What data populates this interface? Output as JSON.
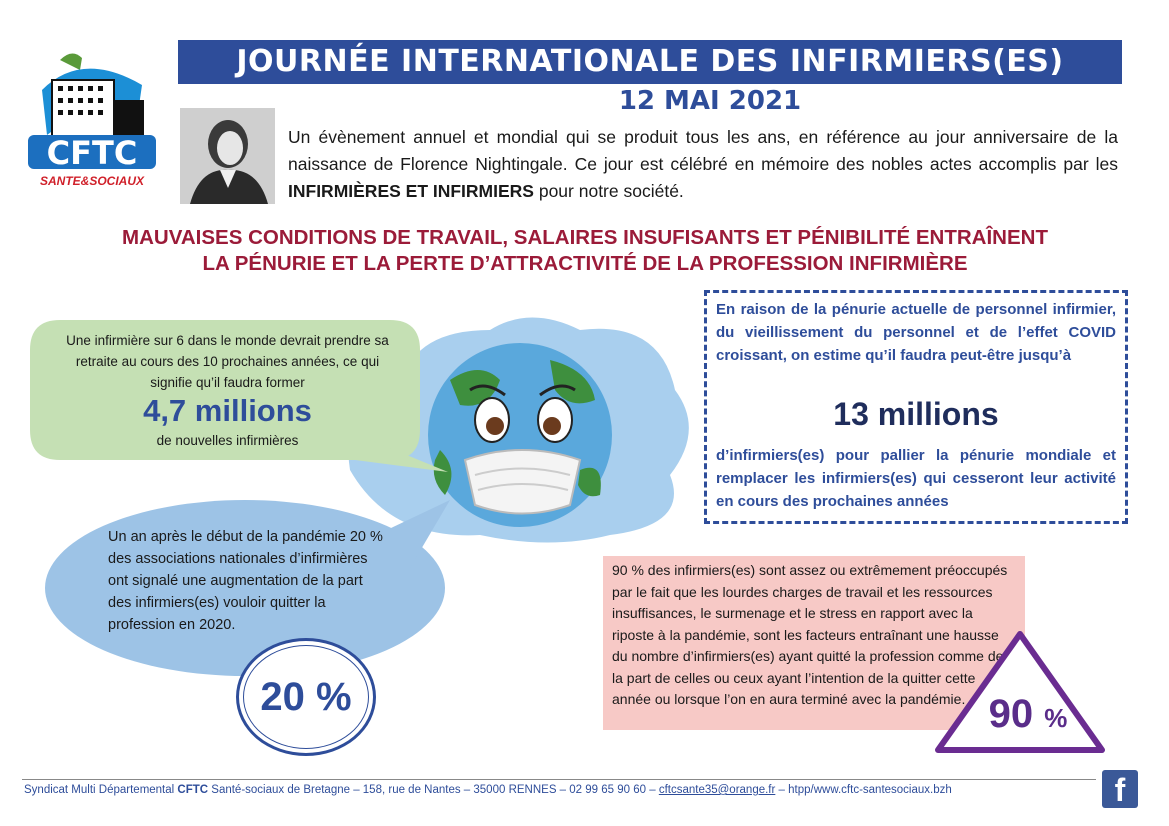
{
  "logo": {
    "main": "CFTC",
    "sub": "SANTE&SOCIAUX"
  },
  "title": "JOURNÉE INTERNATIONALE DES INFIRMIERS(ES)",
  "date": "12 MAI 2021",
  "intro": {
    "part1": "Un évènement annuel et mondial qui se produit tous les ans, en référence au jour anniversaire de la naissance de Florence Nightingale. Ce jour est célébré en mémoire des nobles actes accomplis par les ",
    "bold": "INFIRMIÈRES ET INFIRMIERS",
    "part2": " pour notre société."
  },
  "headline": {
    "line1": "MAUVAISES CONDITIONS DE TRAVAIL, SALAIRES INSUFISANTS ET PÉNIBILITÉ ENTRAÎNENT",
    "line2": "LA PÉNURIE ET LA PERTE D’ATTRACTIVITÉ DE LA PROFESSION INFIRMIÈRE"
  },
  "green_bubble": {
    "text": "Une infirmière sur 6 dans le monde devrait prendre sa retraite au cours des 10 prochaines années,  ce qui signifie qu’il faudra former",
    "big": "4,7 millions",
    "sub": "de nouvelles infirmières"
  },
  "blue_bubble": {
    "text": "Un an après le début de la pandémie 20 % des associations nationales d’infirmières ont signalé une augmentation de la part des infirmiers(es) vouloir quitter la profession en 2020.",
    "percent": "20 %"
  },
  "right_box": {
    "top": "En raison de la pénurie actuelle de personnel infirmier, du vieillissement du personnel et de l’effet COVID croissant, on estime qu’il faudra peut-être jusqu’à",
    "big": "13 millions",
    "bottom": "d’infirmiers(es) pour pallier la pénurie mondiale et remplacer les infirmiers(es) qui cesseront leur activité en cours des prochaines années"
  },
  "pink_box": {
    "text": "90 % des infirmiers(es) sont assez ou extrêmement préoccupés par le fait que les lourdes charges de travail et les ressources insuffisances, le surmenage et le stress en rapport avec la riposte à la pandémie, sont les facteurs entraînant une hausse du nombre d’infirmiers(es) ayant quitté la profession comme de la part de celles ou ceux ayant l’intention de la quitter cette année ou lorsque l’on en aura terminé avec la pandémie.",
    "num": "90",
    "unit": "%"
  },
  "footer": {
    "part1": "Syndicat Multi Départemental ",
    "bold": "CFTC",
    "part2": " Santé-sociaux de Bretagne – 158, rue de Nantes – 35000 RENNES – 02 99 65 90 60 – ",
    "email": "cftcsante35@orange.fr",
    "part3": " – htpp/www.cftc-santesociaux.bzh"
  },
  "facebook_icon": "f",
  "colors": {
    "blue": "#2e4d9a",
    "red": "#9b1b39",
    "green": "#c5e0b4",
    "light_blue": "#9dc3e6",
    "pink": "#f7c9c6",
    "purple": "#6a2c91"
  }
}
